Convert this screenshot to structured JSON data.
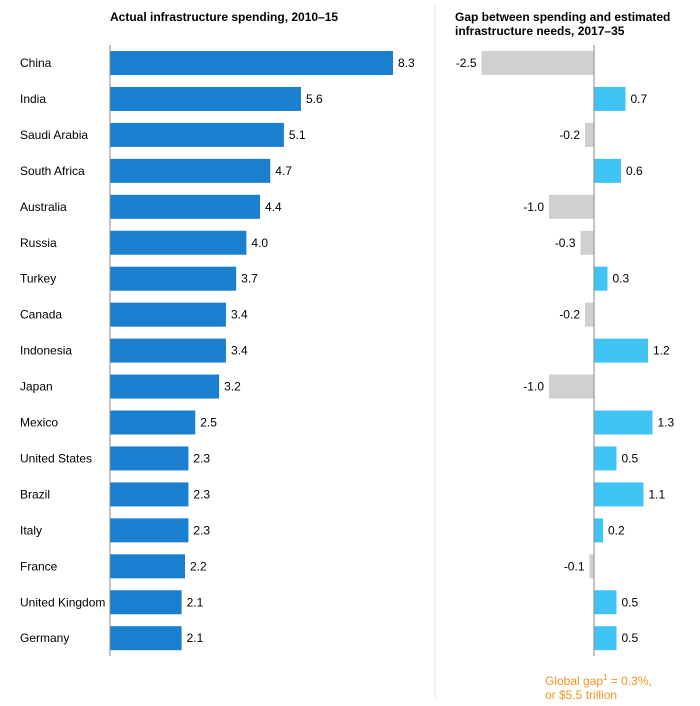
{
  "chart_data": [
    {
      "type": "bar",
      "orientation": "horizontal",
      "title": "Actual infrastructure spending, 2010–15",
      "categories": [
        "China",
        "India",
        "Saudi Arabia",
        "South Africa",
        "Australia",
        "Russia",
        "Turkey",
        "Canada",
        "Indonesia",
        "Japan",
        "Mexico",
        "United States",
        "Brazil",
        "Italy",
        "France",
        "United Kingdom",
        "Germany"
      ],
      "values": [
        8.3,
        5.6,
        5.1,
        4.7,
        4.4,
        4.0,
        3.7,
        3.4,
        3.4,
        3.2,
        2.5,
        2.3,
        2.3,
        2.3,
        2.2,
        2.1,
        2.1
      ],
      "labels": [
        "8.3",
        "5.6",
        "5.1",
        "4.7",
        "4.4",
        "4.0",
        "3.7",
        "3.4",
        "3.4",
        "3.2",
        "2.5",
        "2.3",
        "2.3",
        "2.3",
        "2.2",
        "2.1",
        "2.1"
      ],
      "color": "#1a7fcf",
      "grid": false
    },
    {
      "type": "bar",
      "orientation": "horizontal",
      "title": "Gap between spending and estimated infrastructure needs, 2017–35",
      "categories": [
        "China",
        "India",
        "Saudi Arabia",
        "South Africa",
        "Australia",
        "Russia",
        "Turkey",
        "Canada",
        "Indonesia",
        "Japan",
        "Mexico",
        "United States",
        "Brazil",
        "Italy",
        "France",
        "United Kingdom",
        "Germany"
      ],
      "values": [
        -2.5,
        0.7,
        -0.2,
        0.6,
        -1.0,
        -0.3,
        0.3,
        -0.2,
        1.2,
        -1.0,
        1.3,
        0.5,
        1.1,
        0.2,
        -0.1,
        0.5,
        0.5
      ],
      "labels": [
        "-2.5",
        "0.7",
        "-0.2",
        "0.6",
        "-1.0",
        "-0.3",
        "0.3",
        "-0.2",
        "1.2",
        "-1.0",
        "1.3",
        "0.5",
        "1.1",
        "0.2",
        "-0.1",
        "0.5",
        "0.5"
      ],
      "positive_color": "#40c4f4",
      "negative_color": "#d0d0d0",
      "grid": false
    }
  ],
  "footnote": {
    "line1_prefix": "Global gap",
    "superscript": "1",
    "line1_suffix": " = 0.3%,",
    "line2": "or $5.5 trillion",
    "color": "#f7941d"
  }
}
